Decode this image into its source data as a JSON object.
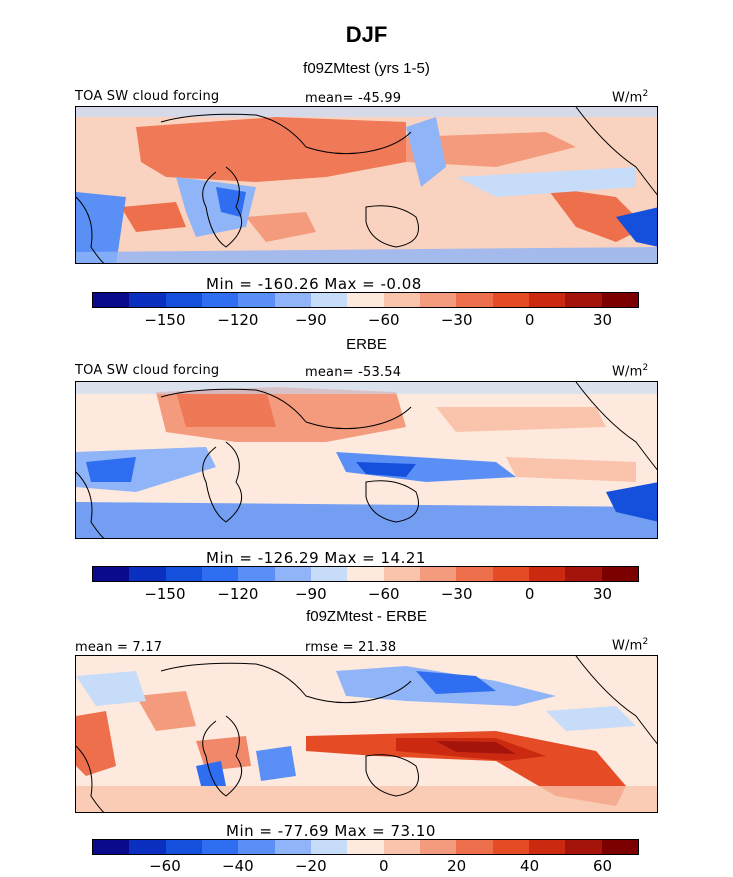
{
  "figure_title": "DJF",
  "colorbar_colors": [
    "#0a0a8c",
    "#0b2fbf",
    "#1450dc",
    "#2f6ef0",
    "#5a90f5",
    "#8fb4f7",
    "#c7dcf9",
    "#fde9de",
    "#f9c4ab",
    "#f49b7d",
    "#ee6f4c",
    "#e54b24",
    "#cc2a10",
    "#a5140b",
    "#7c0000"
  ],
  "chart_data": [
    {
      "type": "heatmap",
      "subtitle": "f09ZMtest (yrs 1-5)",
      "field_label": "TOA SW cloud forcing",
      "mean_text": "mean= -45.99",
      "units": "W/m",
      "units_exp": "2",
      "min": -160.26,
      "max": -0.08,
      "minmax_text": "Min = -160.26 Max =  -0.08",
      "ticks": [
        "-150",
        "-120",
        "-90",
        "-60",
        "-30",
        "0",
        "30"
      ]
    },
    {
      "type": "heatmap",
      "subtitle": "ERBE",
      "field_label": "TOA SW cloud forcing",
      "mean_text": "mean= -53.54",
      "units": "W/m",
      "units_exp": "2",
      "min": -126.29,
      "max": 14.21,
      "minmax_text": "Min = -126.29 Max =  14.21",
      "ticks": [
        "-150",
        "-120",
        "-90",
        "-60",
        "-30",
        "0",
        "30"
      ]
    },
    {
      "type": "heatmap",
      "subtitle": "f09ZMtest - ERBE",
      "mean_text": "mean =  7.17",
      "rmse_text": "rmse =  21.38",
      "units": "W/m",
      "units_exp": "2",
      "min": -77.69,
      "max": 73.1,
      "minmax_text": "Min = -77.69 Max =  73.10",
      "ticks": [
        "-60",
        "-40",
        "-20",
        "0",
        "20",
        "40",
        "60"
      ]
    }
  ]
}
